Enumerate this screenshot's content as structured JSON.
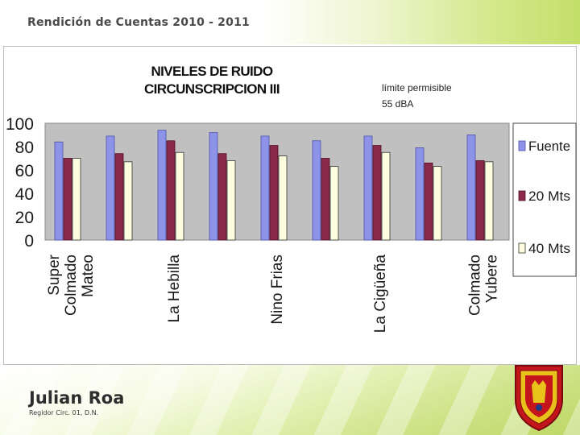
{
  "header": {
    "title": "Rendición de Cuentas 2010 - 2011"
  },
  "footer": {
    "name": "Julian Roa",
    "role": "Regidor Circ. 01, D.N."
  },
  "chart_data": {
    "type": "bar",
    "title_lines": [
      "NIVELES DE RUIDO",
      "CIRCUNSCRIPCION III"
    ],
    "annotation_lines": [
      "límite permisible",
      "55 dBA"
    ],
    "categories": [
      "Super Colmado Mateo",
      "",
      "La Hebilla",
      "",
      "Nino Frias",
      "",
      "La Cigüeña",
      "",
      "Colmado Yubere"
    ],
    "category_label_lines": [
      [
        "Super",
        "Colmado",
        "Mateo"
      ],
      [],
      [
        "La Hebilla"
      ],
      [],
      [
        "Nino Frias"
      ],
      [],
      [
        "La Cigüeña"
      ],
      [],
      [
        "Colmado",
        "Yubere"
      ]
    ],
    "series": [
      {
        "name": "Fuente",
        "values": [
          84,
          89,
          94,
          92,
          89,
          85,
          89,
          79,
          90
        ],
        "color": "#8c93e8",
        "edge": "#4a4fa8"
      },
      {
        "name": "20 Mts",
        "values": [
          70,
          74,
          85,
          74,
          81,
          70,
          81,
          66,
          68
        ],
        "color": "#8b2a4b",
        "edge": "#4d1026"
      },
      {
        "name": "40 Mts",
        "values": [
          70,
          67,
          75,
          68,
          72,
          63,
          75,
          63,
          67
        ],
        "color": "#fdfde0",
        "edge": "#333333"
      }
    ],
    "ylim": [
      0,
      100
    ],
    "yticks": [
      0,
      20,
      40,
      60,
      80,
      100
    ],
    "grid": false,
    "legend_position": "right"
  }
}
